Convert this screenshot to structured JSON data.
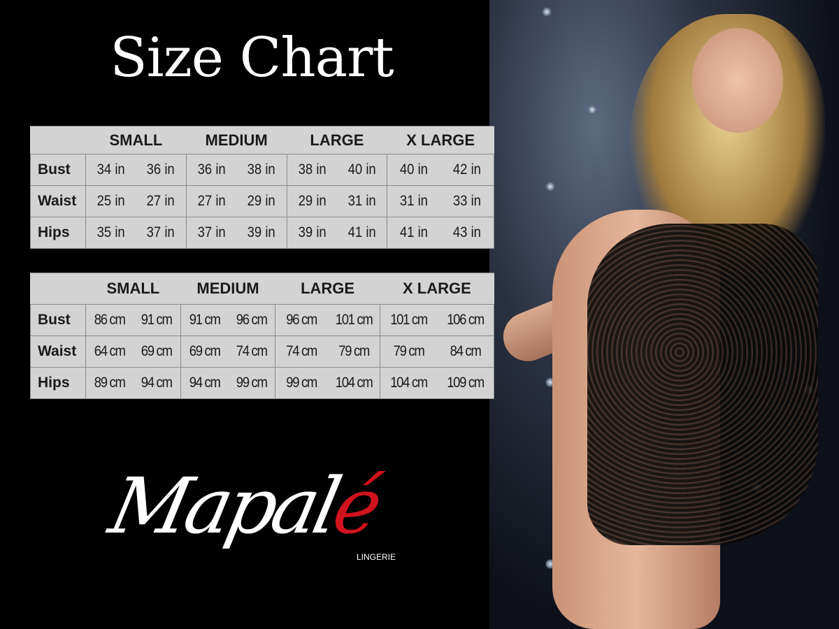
{
  "title": "Size Chart",
  "sizes": [
    "SMALL",
    "MEDIUM",
    "LARGE",
    "X LARGE"
  ],
  "inches_table": {
    "rows": [
      {
        "label": "Bust",
        "values": [
          "34 in",
          "36 in",
          "36 in",
          "38 in",
          "38 in",
          "40 in",
          "40 in",
          "42 in"
        ]
      },
      {
        "label": "Waist",
        "values": [
          "25 in",
          "27 in",
          "27 in",
          "29 in",
          "29 in",
          "31 in",
          "31 in",
          "33 in"
        ]
      },
      {
        "label": "Hips",
        "values": [
          "35 in",
          "37 in",
          "37 in",
          "39 in",
          "39 in",
          "41 in",
          "41 in",
          "43 in"
        ]
      }
    ]
  },
  "cm_table": {
    "rows": [
      {
        "label": "Bust",
        "values": [
          "86 cm",
          "91 cm",
          "91 cm",
          "96 cm",
          "96 cm",
          "101 cm",
          "101 cm",
          "106 cm"
        ]
      },
      {
        "label": "Waist",
        "values": [
          "64 cm",
          "69 cm",
          "69 cm",
          "74 cm",
          "74 cm",
          "79  cm",
          "79 cm",
          "84 cm"
        ]
      },
      {
        "label": "Hips",
        "values": [
          "89 cm",
          "94 cm",
          "94 cm",
          "99 cm",
          "99 cm",
          "104 cm",
          "104 cm",
          "109 cm"
        ]
      }
    ]
  },
  "logo": {
    "main": "Mapal",
    "accent": "é",
    "sub": "LINGERIE",
    "accent_color": "#d0121c"
  }
}
